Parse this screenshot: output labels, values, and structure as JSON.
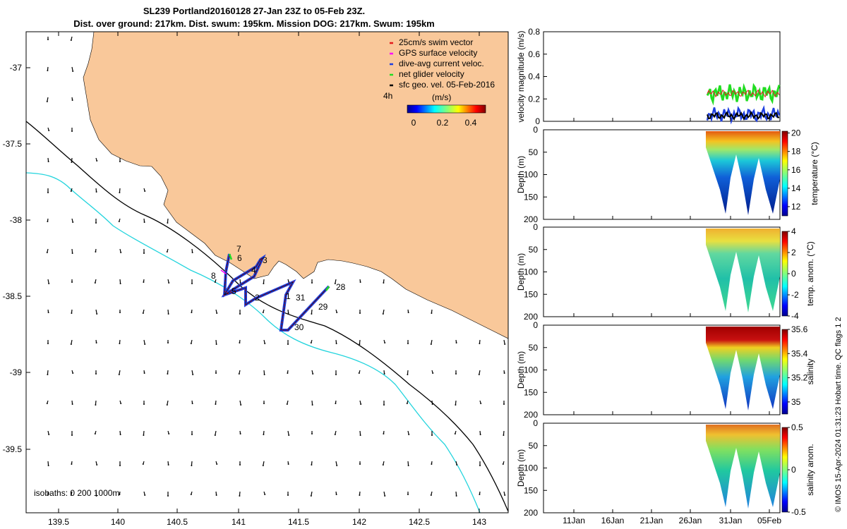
{
  "title_line1": "SL239 Portland20160128 27-Jan 23Z to 05-Feb 23Z.",
  "title_line2": "Dist. over ground: 217km. Dist. swum: 195km. Mission DOG: 217km. Swum: 195km",
  "map": {
    "x_ticks": [
      "139.5",
      "140",
      "140.5",
      "141",
      "141.5",
      "142",
      "142.5",
      "143"
    ],
    "y_ticks": [
      "-37",
      "-37.5",
      "-38",
      "-38.5",
      "-39",
      "-39.5"
    ],
    "legend": [
      {
        "label": "25cm/s swim vector",
        "color": "#e31a1c"
      },
      {
        "label": "GPS surface velocity",
        "color": "#ff00ff"
      },
      {
        "label": "dive-avg current veloc.",
        "color": "#1f3fe0"
      },
      {
        "label": "net glider velocity",
        "color": "#22dd22"
      },
      {
        "label": "sfc geo. vel. 05-Feb-2016",
        "color": "#000000"
      }
    ],
    "legend_interval": "4h",
    "colorbar_label": "(m/s)",
    "colorbar_ticks": [
      "0",
      "0.2",
      "0.4"
    ],
    "isobaths_label": "isobaths: 0   200  1000m",
    "track_day_labels": [
      "7",
      "6",
      "8",
      "3",
      "4",
      "5",
      "2",
      "1",
      "31",
      "28",
      "29",
      "30"
    ]
  },
  "panels": {
    "velocity": {
      "ylabel": "velocity magnitude (m/s)",
      "y_ticks": [
        "0.8",
        "0.6",
        "0.4",
        "0.2",
        "0"
      ]
    },
    "temperature": {
      "ylabel": "Depth (m)",
      "cb_label": "temperature (°C)",
      "cb_ticks": [
        "20",
        "18",
        "16",
        "14",
        "12"
      ],
      "y_ticks": [
        "0",
        "50",
        "100",
        "150",
        "200"
      ]
    },
    "temp_anom": {
      "ylabel": "Depth (m)",
      "cb_label": "temp. anom. (°C)",
      "cb_ticks": [
        "4",
        "2",
        "0",
        "-2",
        "-4"
      ],
      "y_ticks": [
        "0",
        "50",
        "100",
        "150",
        "200"
      ]
    },
    "salinity": {
      "ylabel": "Depth (m)",
      "cb_label": "salinity",
      "cb_ticks": [
        "35.6",
        "35.4",
        "35.2",
        "35"
      ],
      "y_ticks": [
        "0",
        "50",
        "100",
        "150",
        "200"
      ]
    },
    "sal_anom": {
      "ylabel": "Depth (m)",
      "cb_label": "salinity anom.",
      "cb_ticks": [
        "0.5",
        "0",
        "-0.5"
      ],
      "y_ticks": [
        "0",
        "50",
        "100",
        "150",
        "200"
      ]
    },
    "time_ticks": [
      "11Jan",
      "16Jan",
      "21Jan",
      "26Jan",
      "31Jan",
      "05Feb"
    ]
  },
  "footer": "© IMOS 15-Apr-2024 01:31:23 Hobart time. QC flags 1  2"
}
